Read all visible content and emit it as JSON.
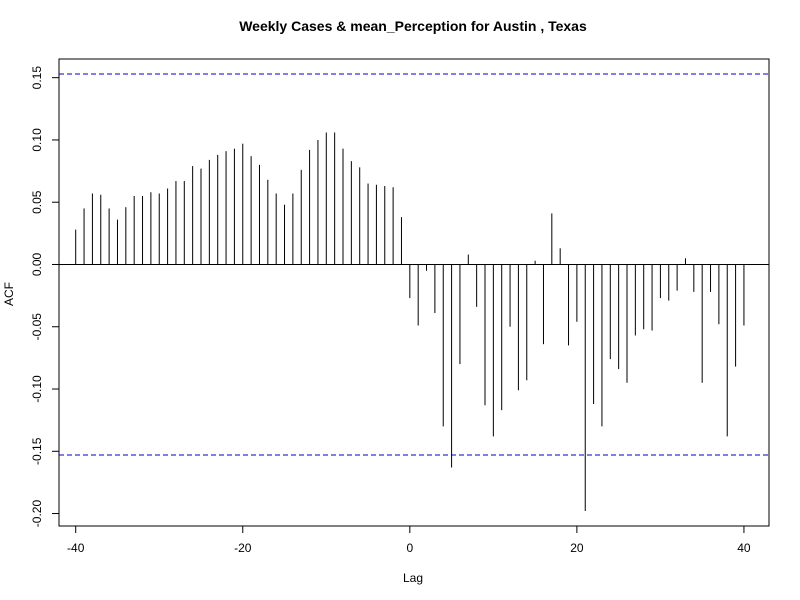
{
  "chart_data": {
    "type": "bar",
    "title": "Weekly Cases & mean_Perception for Austin , Texas",
    "xlabel": "Lag",
    "ylabel": "ACF",
    "xlim": [
      -42,
      43
    ],
    "ylim": [
      -0.21,
      0.165
    ],
    "xticks": [
      -40,
      -20,
      0,
      20,
      40
    ],
    "yticks": [
      -0.2,
      -0.15,
      -0.1,
      -0.05,
      0.0,
      0.05,
      0.1,
      0.15
    ],
    "ytick_labels": [
      "-0.20",
      "-0.15",
      "-0.10",
      "-0.05",
      "0.00",
      "0.05",
      "0.10",
      "0.15"
    ],
    "confidence_limit": 0.153,
    "confidence_line_color": "#0000CC",
    "bar_color": "#000000",
    "grid": false,
    "x": [
      -40,
      -39,
      -38,
      -37,
      -36,
      -35,
      -34,
      -33,
      -32,
      -31,
      -30,
      -29,
      -28,
      -27,
      -26,
      -25,
      -24,
      -23,
      -22,
      -21,
      -20,
      -19,
      -18,
      -17,
      -16,
      -15,
      -14,
      -13,
      -12,
      -11,
      -10,
      -9,
      -8,
      -7,
      -6,
      -5,
      -4,
      -3,
      -2,
      -1,
      0,
      1,
      2,
      3,
      4,
      5,
      6,
      7,
      8,
      9,
      10,
      11,
      12,
      13,
      14,
      15,
      16,
      17,
      18,
      19,
      20,
      21,
      22,
      23,
      24,
      25,
      26,
      27,
      28,
      29,
      30,
      31,
      32,
      33,
      34,
      35,
      36,
      37,
      38,
      39,
      40
    ],
    "values": [
      0.028,
      0.045,
      0.057,
      0.056,
      0.045,
      0.036,
      0.046,
      0.055,
      0.055,
      0.058,
      0.057,
      0.061,
      0.067,
      0.067,
      0.079,
      0.077,
      0.084,
      0.088,
      0.091,
      0.093,
      0.097,
      0.087,
      0.08,
      0.068,
      0.057,
      0.048,
      0.057,
      0.076,
      0.092,
      0.1,
      0.106,
      0.106,
      0.093,
      0.083,
      0.078,
      0.065,
      0.064,
      0.063,
      0.062,
      0.038,
      -0.027,
      -0.049,
      -0.005,
      -0.039,
      -0.13,
      -0.163,
      -0.08,
      0.008,
      -0.034,
      -0.113,
      -0.138,
      -0.117,
      -0.05,
      -0.101,
      -0.093,
      0.003,
      -0.064,
      0.041,
      0.013,
      -0.065,
      -0.046,
      -0.198,
      -0.112,
      -0.13,
      -0.076,
      -0.084,
      -0.095,
      -0.057,
      -0.052,
      -0.053,
      -0.027,
      -0.029,
      -0.021,
      0.005,
      -0.022,
      -0.095,
      -0.022,
      -0.048,
      -0.138,
      -0.082,
      -0.049
    ]
  }
}
